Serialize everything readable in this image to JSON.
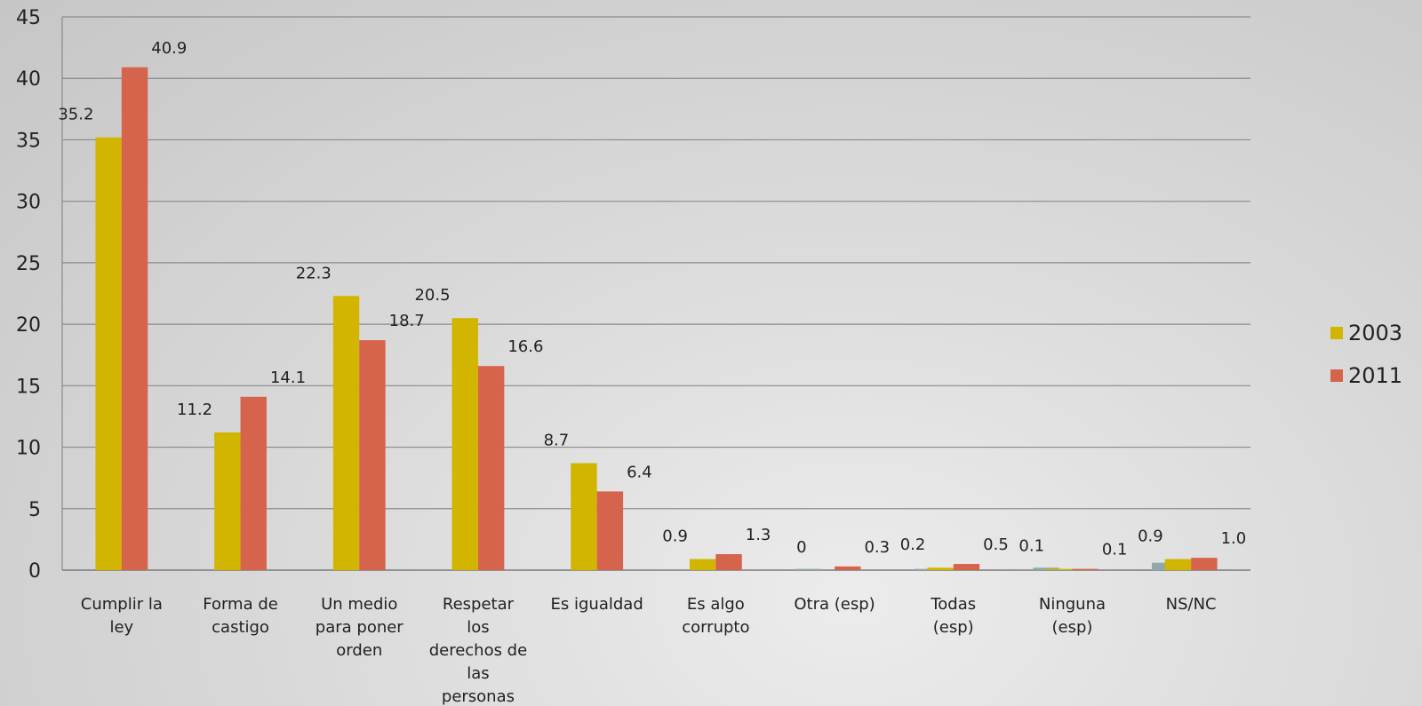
{
  "chart_data": {
    "type": "bar",
    "categories": [
      [
        "Cumplir la",
        "ley"
      ],
      [
        "Forma de",
        "castigo"
      ],
      [
        "Un medio",
        "para poner",
        "orden"
      ],
      [
        "Respetar",
        "los",
        "derechos de",
        "las",
        "personas"
      ],
      [
        "Es igualdad"
      ],
      [
        "Es algo",
        "corrupto"
      ],
      [
        "Otra (esp)"
      ],
      [
        "Todas",
        "(esp)"
      ],
      [
        "Ninguna",
        "(esp)"
      ],
      [
        "NS/NC"
      ]
    ],
    "series": [
      {
        "name": "2003",
        "color": "#d1b500",
        "values": [
          35.2,
          11.2,
          22.3,
          20.5,
          8.7,
          0.9,
          0,
          0.2,
          0.1,
          0.9
        ],
        "labels": [
          "35.2",
          "11.2",
          "22.3",
          "20.5",
          "8.7",
          "0.9",
          "0",
          "0.2",
          "0.1",
          "0.9"
        ]
      },
      {
        "name": "2011",
        "color": "#d6634c",
        "values": [
          40.9,
          14.1,
          18.7,
          16.6,
          6.4,
          1.3,
          0.3,
          0.5,
          0.1,
          1.0
        ],
        "labels": [
          "40.9",
          "14.1",
          "18.7",
          "16.6",
          "6.4",
          "1.3",
          "0.3",
          "0.5",
          "0.1",
          "1.0"
        ]
      }
    ],
    "ghost_series_color": "#8fa9a9",
    "ghost_values": [
      0,
      0,
      0,
      0,
      0,
      0,
      0.1,
      0.1,
      0.2,
      0.6
    ],
    "y_ticks": [
      "0",
      "5",
      "10",
      "15",
      "20",
      "25",
      "30",
      "35",
      "40",
      "45"
    ],
    "ylim": [
      0,
      45
    ],
    "grid": true,
    "legend_position": "right",
    "title": "",
    "xlabel": "",
    "ylabel": ""
  }
}
